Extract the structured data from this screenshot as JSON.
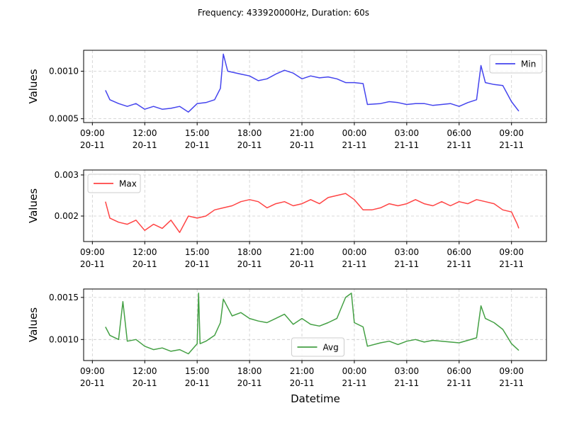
{
  "chart_data": {
    "type": "line",
    "title": "Frequency: 433920000Hz, Duration: 60s",
    "xlabel": "Datetime",
    "grid": true,
    "x_ticks": [
      {
        "time": "09:00",
        "date": "20-11"
      },
      {
        "time": "12:00",
        "date": "20-11"
      },
      {
        "time": "15:00",
        "date": "20-11"
      },
      {
        "time": "18:00",
        "date": "20-11"
      },
      {
        "time": "21:00",
        "date": "20-11"
      },
      {
        "time": "00:00",
        "date": "21-11"
      },
      {
        "time": "03:00",
        "date": "21-11"
      },
      {
        "time": "06:00",
        "date": "21-11"
      },
      {
        "time": "09:00",
        "date": "21-11"
      }
    ],
    "xlim": [
      "2023-11-20 08:30",
      "2023-11-21 11:00"
    ],
    "panels": [
      {
        "series_name": "Min",
        "color": "#4444ee",
        "ylabel": "Values",
        "legend_position": "upper right",
        "ylim": [
          0.00046,
          0.00122
        ],
        "yticks": [
          {
            "value": 0.0005,
            "label": "0.0005"
          },
          {
            "value": 0.001,
            "label": "0.0010"
          }
        ],
        "points": [
          [
            "2023-11-20 09:45",
            0.0008
          ],
          [
            "2023-11-20 10:00",
            0.0007
          ],
          [
            "2023-11-20 10:30",
            0.00066
          ],
          [
            "2023-11-20 11:00",
            0.00063
          ],
          [
            "2023-11-20 11:30",
            0.00066
          ],
          [
            "2023-11-20 12:00",
            0.0006
          ],
          [
            "2023-11-20 12:30",
            0.00063
          ],
          [
            "2023-11-20 13:00",
            0.0006
          ],
          [
            "2023-11-20 13:30",
            0.00061
          ],
          [
            "2023-11-20 14:00",
            0.00063
          ],
          [
            "2023-11-20 14:30",
            0.00057
          ],
          [
            "2023-11-20 15:00",
            0.00066
          ],
          [
            "2023-11-20 15:30",
            0.00067
          ],
          [
            "2023-11-20 16:00",
            0.0007
          ],
          [
            "2023-11-20 16:20",
            0.00082
          ],
          [
            "2023-11-20 16:30",
            0.00118
          ],
          [
            "2023-11-20 16:45",
            0.001
          ],
          [
            "2023-11-20 17:30",
            0.00097
          ],
          [
            "2023-11-20 18:00",
            0.00095
          ],
          [
            "2023-11-20 18:30",
            0.0009
          ],
          [
            "2023-11-20 19:00",
            0.00092
          ],
          [
            "2023-11-20 19:30",
            0.00097
          ],
          [
            "2023-11-20 20:00",
            0.00101
          ],
          [
            "2023-11-20 20:30",
            0.00098
          ],
          [
            "2023-11-20 21:00",
            0.00092
          ],
          [
            "2023-11-20 21:30",
            0.00095
          ],
          [
            "2023-11-20 22:00",
            0.00093
          ],
          [
            "2023-11-20 22:30",
            0.00094
          ],
          [
            "2023-11-20 23:00",
            0.00092
          ],
          [
            "2023-11-20 23:30",
            0.00088
          ],
          [
            "2023-11-21 00:00",
            0.00088
          ],
          [
            "2023-11-21 00:30",
            0.00087
          ],
          [
            "2023-11-21 00:45",
            0.00065
          ],
          [
            "2023-11-21 01:30",
            0.00066
          ],
          [
            "2023-11-21 02:00",
            0.00068
          ],
          [
            "2023-11-21 02:30",
            0.00067
          ],
          [
            "2023-11-21 03:00",
            0.00065
          ],
          [
            "2023-11-21 03:30",
            0.00066
          ],
          [
            "2023-11-21 04:00",
            0.00066
          ],
          [
            "2023-11-21 04:30",
            0.00064
          ],
          [
            "2023-11-21 05:00",
            0.00065
          ],
          [
            "2023-11-21 05:30",
            0.00066
          ],
          [
            "2023-11-21 06:00",
            0.00063
          ],
          [
            "2023-11-21 06:30",
            0.00067
          ],
          [
            "2023-11-21 07:00",
            0.0007
          ],
          [
            "2023-11-21 07:15",
            0.00106
          ],
          [
            "2023-11-21 07:30",
            0.00088
          ],
          [
            "2023-11-21 08:00",
            0.00086
          ],
          [
            "2023-11-21 08:30",
            0.00085
          ],
          [
            "2023-11-21 09:00",
            0.00068
          ],
          [
            "2023-11-21 09:25",
            0.00058
          ]
        ]
      },
      {
        "series_name": "Max",
        "color": "#ff4444",
        "ylabel": "Values",
        "legend_position": "upper left",
        "ylim": [
          0.00138,
          0.00312
        ],
        "yticks": [
          {
            "value": 0.002,
            "label": "0.002"
          },
          {
            "value": 0.003,
            "label": "0.003"
          }
        ],
        "points": [
          [
            "2023-11-20 09:45",
            0.00235
          ],
          [
            "2023-11-20 10:00",
            0.00195
          ],
          [
            "2023-11-20 10:30",
            0.00185
          ],
          [
            "2023-11-20 11:00",
            0.0018
          ],
          [
            "2023-11-20 11:30",
            0.0019
          ],
          [
            "2023-11-20 12:00",
            0.00165
          ],
          [
            "2023-11-20 12:30",
            0.0018
          ],
          [
            "2023-11-20 13:00",
            0.0017
          ],
          [
            "2023-11-20 13:30",
            0.0019
          ],
          [
            "2023-11-20 14:00",
            0.0016
          ],
          [
            "2023-11-20 14:30",
            0.002
          ],
          [
            "2023-11-20 15:00",
            0.00195
          ],
          [
            "2023-11-20 15:30",
            0.002
          ],
          [
            "2023-11-20 16:00",
            0.00215
          ],
          [
            "2023-11-20 16:30",
            0.0022
          ],
          [
            "2023-11-20 17:00",
            0.00225
          ],
          [
            "2023-11-20 17:30",
            0.00235
          ],
          [
            "2023-11-20 18:00",
            0.0024
          ],
          [
            "2023-11-20 18:30",
            0.00235
          ],
          [
            "2023-11-20 19:00",
            0.0022
          ],
          [
            "2023-11-20 19:30",
            0.0023
          ],
          [
            "2023-11-20 20:00",
            0.00235
          ],
          [
            "2023-11-20 20:30",
            0.00225
          ],
          [
            "2023-11-20 21:00",
            0.0023
          ],
          [
            "2023-11-20 21:30",
            0.0024
          ],
          [
            "2023-11-20 22:00",
            0.0023
          ],
          [
            "2023-11-20 22:30",
            0.00245
          ],
          [
            "2023-11-20 23:00",
            0.0025
          ],
          [
            "2023-11-20 23:30",
            0.00255
          ],
          [
            "2023-11-21 00:00",
            0.0024
          ],
          [
            "2023-11-21 00:30",
            0.00215
          ],
          [
            "2023-11-21 01:00",
            0.00215
          ],
          [
            "2023-11-21 01:30",
            0.0022
          ],
          [
            "2023-11-21 02:00",
            0.0023
          ],
          [
            "2023-11-21 02:30",
            0.00225
          ],
          [
            "2023-11-21 03:00",
            0.0023
          ],
          [
            "2023-11-21 03:30",
            0.0024
          ],
          [
            "2023-11-21 04:00",
            0.0023
          ],
          [
            "2023-11-21 04:30",
            0.00225
          ],
          [
            "2023-11-21 05:00",
            0.00235
          ],
          [
            "2023-11-21 05:30",
            0.00225
          ],
          [
            "2023-11-21 06:00",
            0.00235
          ],
          [
            "2023-11-21 06:30",
            0.0023
          ],
          [
            "2023-11-21 07:00",
            0.0024
          ],
          [
            "2023-11-21 07:30",
            0.00235
          ],
          [
            "2023-11-21 08:00",
            0.0023
          ],
          [
            "2023-11-21 08:30",
            0.00215
          ],
          [
            "2023-11-21 09:00",
            0.0021
          ],
          [
            "2023-11-21 09:20",
            0.0018
          ],
          [
            "2023-11-21 09:25",
            0.0017
          ]
        ]
      },
      {
        "series_name": "Avg",
        "color": "#44a044",
        "ylabel": "Values",
        "legend_position": "lower center",
        "ylim": [
          0.00075,
          0.0016
        ],
        "yticks": [
          {
            "value": 0.001,
            "label": "0.0010"
          },
          {
            "value": 0.0015,
            "label": "0.0015"
          }
        ],
        "points": [
          [
            "2023-11-20 09:45",
            0.00115
          ],
          [
            "2023-11-20 10:00",
            0.00105
          ],
          [
            "2023-11-20 10:30",
            0.001
          ],
          [
            "2023-11-20 10:45",
            0.00145
          ],
          [
            "2023-11-20 11:00",
            0.00098
          ],
          [
            "2023-11-20 11:30",
            0.001
          ],
          [
            "2023-11-20 12:00",
            0.00092
          ],
          [
            "2023-11-20 12:30",
            0.00088
          ],
          [
            "2023-11-20 13:00",
            0.0009
          ],
          [
            "2023-11-20 13:30",
            0.00086
          ],
          [
            "2023-11-20 14:00",
            0.00088
          ],
          [
            "2023-11-20 14:30",
            0.00083
          ],
          [
            "2023-11-20 15:00",
            0.00095
          ],
          [
            "2023-11-20 15:05",
            0.00155
          ],
          [
            "2023-11-20 15:10",
            0.00095
          ],
          [
            "2023-11-20 15:30",
            0.00098
          ],
          [
            "2023-11-20 16:00",
            0.00105
          ],
          [
            "2023-11-20 16:20",
            0.0012
          ],
          [
            "2023-11-20 16:30",
            0.00148
          ],
          [
            "2023-11-20 17:00",
            0.00128
          ],
          [
            "2023-11-20 17:30",
            0.00132
          ],
          [
            "2023-11-20 18:00",
            0.00125
          ],
          [
            "2023-11-20 18:30",
            0.00122
          ],
          [
            "2023-11-20 19:00",
            0.0012
          ],
          [
            "2023-11-20 19:30",
            0.00125
          ],
          [
            "2023-11-20 20:00",
            0.0013
          ],
          [
            "2023-11-20 20:30",
            0.00118
          ],
          [
            "2023-11-20 21:00",
            0.00125
          ],
          [
            "2023-11-20 21:30",
            0.00118
          ],
          [
            "2023-11-20 22:00",
            0.00116
          ],
          [
            "2023-11-20 22:30",
            0.0012
          ],
          [
            "2023-11-20 23:00",
            0.00125
          ],
          [
            "2023-11-20 23:30",
            0.0015
          ],
          [
            "2023-11-20 23:50",
            0.00155
          ],
          [
            "2023-11-21 00:00",
            0.0012
          ],
          [
            "2023-11-21 00:30",
            0.00115
          ],
          [
            "2023-11-21 00:45",
            0.00092
          ],
          [
            "2023-11-21 01:30",
            0.00096
          ],
          [
            "2023-11-21 02:00",
            0.00098
          ],
          [
            "2023-11-21 02:30",
            0.00094
          ],
          [
            "2023-11-21 03:00",
            0.00098
          ],
          [
            "2023-11-21 03:30",
            0.001
          ],
          [
            "2023-11-21 04:00",
            0.00097
          ],
          [
            "2023-11-21 04:30",
            0.00099
          ],
          [
            "2023-11-21 05:00",
            0.00098
          ],
          [
            "2023-11-21 05:30",
            0.00097
          ],
          [
            "2023-11-21 06:00",
            0.00096
          ],
          [
            "2023-11-21 06:30",
            0.00099
          ],
          [
            "2023-11-21 07:00",
            0.00102
          ],
          [
            "2023-11-21 07:15",
            0.0014
          ],
          [
            "2023-11-21 07:30",
            0.00125
          ],
          [
            "2023-11-21 08:00",
            0.0012
          ],
          [
            "2023-11-21 08:30",
            0.00112
          ],
          [
            "2023-11-21 09:00",
            0.00095
          ],
          [
            "2023-11-21 09:25",
            0.00087
          ]
        ]
      }
    ]
  }
}
